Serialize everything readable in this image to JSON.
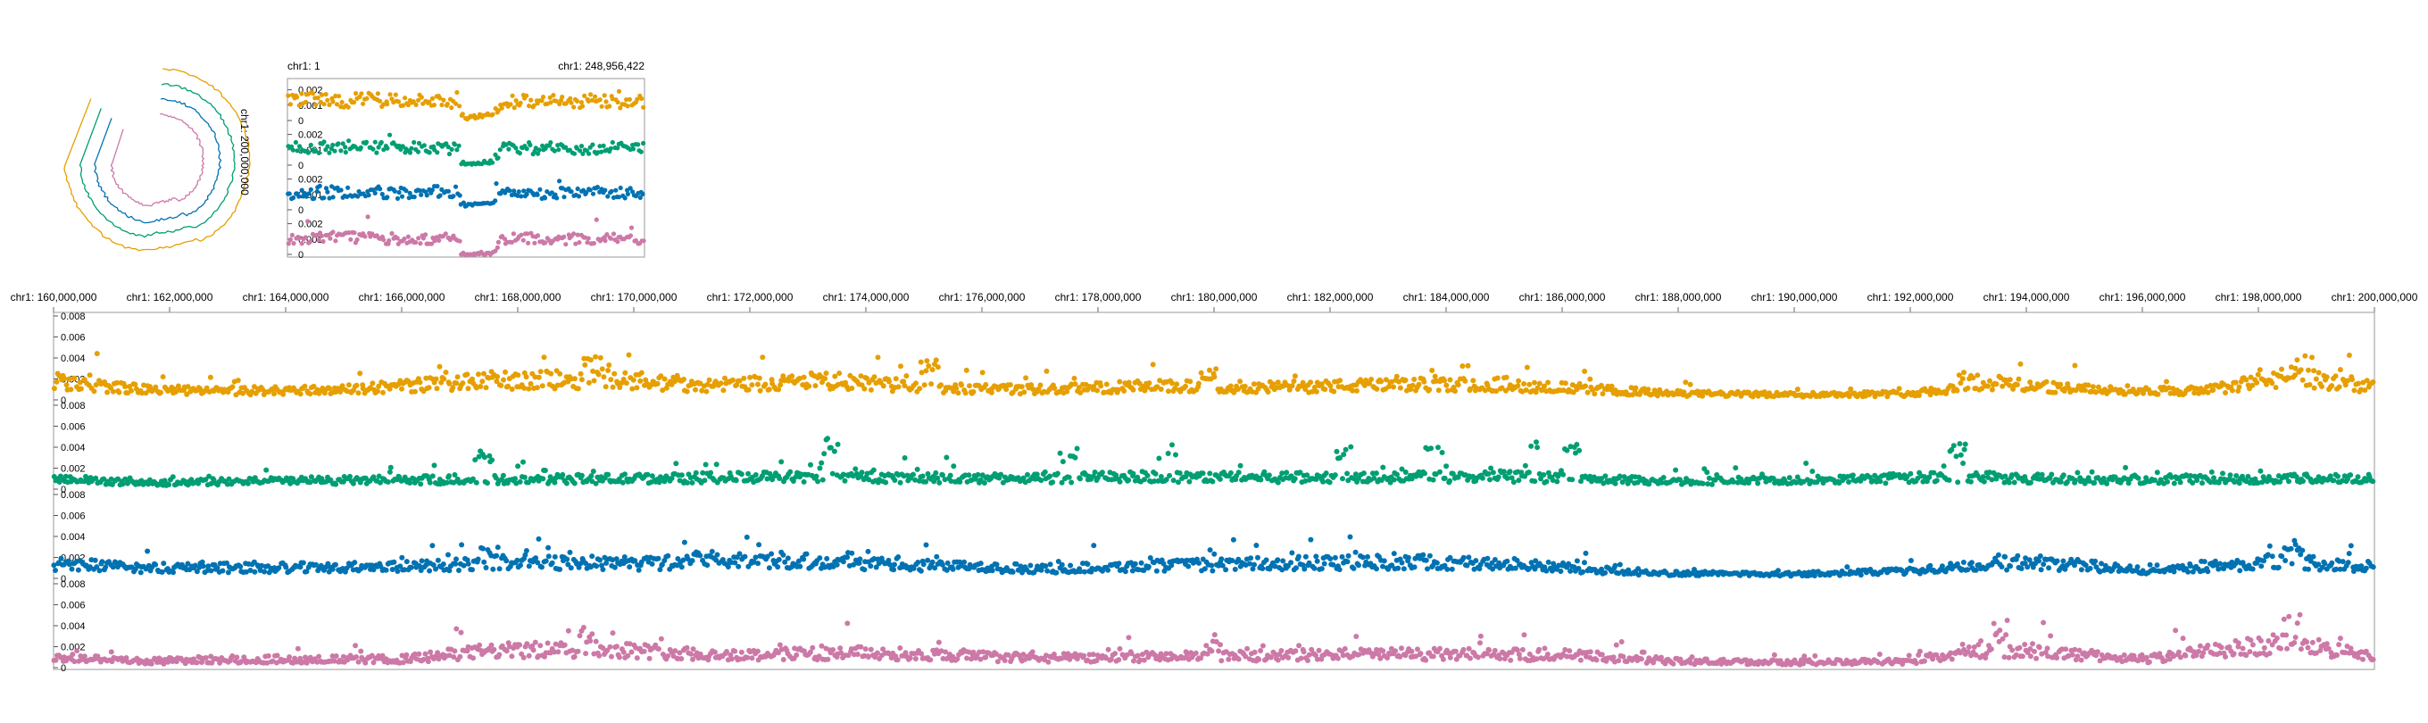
{
  "colors": {
    "track1": "#E69F00",
    "track2": "#009E73",
    "track3": "#0072B2",
    "track4": "#CC79A7"
  },
  "overview": {
    "start_label": "chr1: 1",
    "end_label": "chr1: 248,956,422",
    "circular_label": "chr1: 200,000,000",
    "y_ticks": [
      "0.002",
      "0.001",
      "0"
    ]
  },
  "detail": {
    "x_ticks": [
      "chr1: 160,000,000",
      "chr1: 162,000,000",
      "chr1: 164,000,000",
      "chr1: 166,000,000",
      "chr1: 168,000,000",
      "chr1: 170,000,000",
      "chr1: 172,000,000",
      "chr1: 174,000,000",
      "chr1: 176,000,000",
      "chr1: 178,000,000",
      "chr1: 180,000,000",
      "chr1: 182,000,000",
      "chr1: 184,000,000",
      "chr1: 186,000,000",
      "chr1: 188,000,000",
      "chr1: 190,000,000",
      "chr1: 192,000,000",
      "chr1: 194,000,000",
      "chr1: 196,000,000",
      "chr1: 198,000,000",
      "chr1: 200,000,000"
    ],
    "y_ticks": [
      "0.008",
      "0.006",
      "0.004",
      "0.002",
      "0"
    ]
  },
  "chart_data": [
    {
      "type": "scatter",
      "view": "overview",
      "x_range": [
        1,
        248956422
      ],
      "ylim": [
        0,
        0.0025
      ],
      "series": [
        {
          "color": "#E69F00",
          "profile_x": [
            1,
            20000000,
            40000000,
            60000000,
            80000000,
            100000000,
            120000000,
            121000000,
            125000000,
            143000000,
            150000000,
            170000000,
            190000000,
            210000000,
            230000000,
            248956422
          ],
          "profile_y": [
            0.0012,
            0.0014,
            0.0013,
            0.0014,
            0.0012,
            0.0013,
            0.0012,
            0.0004,
            0.0002,
            0.0004,
            0.0012,
            0.0013,
            0.0012,
            0.0013,
            0.0012,
            0.0012
          ]
        },
        {
          "color": "#009E73",
          "profile_x": [
            1,
            40000000,
            80000000,
            120000000,
            121000000,
            125000000,
            143000000,
            150000000,
            190000000,
            248956422
          ],
          "profile_y": [
            0.0011,
            0.0012,
            0.0011,
            0.0011,
            0.0002,
            0.0001,
            0.0002,
            0.0011,
            0.0011,
            0.0011
          ]
        },
        {
          "color": "#0072B2",
          "profile_x": [
            1,
            40000000,
            80000000,
            120000000,
            121000000,
            125000000,
            143000000,
            150000000,
            190000000,
            248956422
          ],
          "profile_y": [
            0.001,
            0.0012,
            0.0011,
            0.0012,
            0.0004,
            0.0003,
            0.0004,
            0.0011,
            0.0011,
            0.0011
          ]
        },
        {
          "color": "#CC79A7",
          "profile_x": [
            1,
            40000000,
            80000000,
            120000000,
            121000000,
            125000000,
            143000000,
            150000000,
            190000000,
            248956422
          ],
          "profile_y": [
            0.001,
            0.0011,
            0.001,
            0.001,
            0.0001,
            0.0,
            0.0001,
            0.001,
            0.001,
            0.001
          ]
        }
      ]
    },
    {
      "type": "scatter",
      "view": "detail",
      "x_range": [
        160000000,
        200000000
      ],
      "ylim": [
        0,
        0.008
      ],
      "series": [
        {
          "color": "#E69F00",
          "profile_x": [
            160000000,
            161500000,
            163000000,
            165000000,
            167500000,
            169500000,
            171000000,
            173500000,
            175000000,
            177000000,
            179000000,
            181000000,
            183000000,
            185000000,
            186500000,
            188000000,
            190000000,
            192000000,
            193500000,
            195000000,
            197000000,
            198500000,
            200000000
          ],
          "profile_y": [
            0.0018,
            0.001,
            0.0008,
            0.001,
            0.0018,
            0.002,
            0.0014,
            0.0018,
            0.0012,
            0.001,
            0.0013,
            0.0012,
            0.0014,
            0.0015,
            0.001,
            0.0006,
            0.0005,
            0.0006,
            0.0016,
            0.001,
            0.0008,
            0.0022,
            0.0012
          ],
          "peaks": [
            [
              169300000,
              0.0042
            ],
            [
              175100000,
              0.0038
            ],
            [
              179900000,
              0.003
            ],
            [
              198800000,
              0.0042
            ],
            [
              193000000,
              0.003
            ]
          ]
        },
        {
          "color": "#009E73",
          "profile_x": [
            160000000,
            161500000,
            164000000,
            167000000,
            170000000,
            173000000,
            176000000,
            179000000,
            182000000,
            185000000,
            187500000,
            190000000,
            193000000,
            195000000,
            198000000,
            200000000
          ],
          "profile_y": [
            0.001,
            0.0006,
            0.0008,
            0.0009,
            0.001,
            0.0012,
            0.001,
            0.0012,
            0.0011,
            0.0012,
            0.0008,
            0.0008,
            0.0012,
            0.0009,
            0.001,
            0.001
          ],
          "peaks": [
            [
              173400000,
              0.005
            ],
            [
              177500000,
              0.004
            ],
            [
              179200000,
              0.0045
            ],
            [
              182200000,
              0.0042
            ],
            [
              183800000,
              0.0048
            ],
            [
              185600000,
              0.0045
            ],
            [
              186200000,
              0.0048
            ],
            [
              192800000,
              0.0045
            ],
            [
              167400000,
              0.0038
            ]
          ]
        },
        {
          "color": "#0072B2",
          "profile_x": [
            160000000,
            161500000,
            163500000,
            166000000,
            168000000,
            170000000,
            172500000,
            175000000,
            177000000,
            179000000,
            181000000,
            183500000,
            185500000,
            187500000,
            190000000,
            192000000,
            194000000,
            196000000,
            198500000,
            200000000
          ],
          "profile_y": [
            0.0014,
            0.001,
            0.001,
            0.0011,
            0.0016,
            0.0014,
            0.0018,
            0.0012,
            0.0009,
            0.0012,
            0.0014,
            0.0016,
            0.0012,
            0.0005,
            0.0004,
            0.0007,
            0.0016,
            0.0008,
            0.0016,
            0.0011
          ],
          "peaks": [
            [
              167500000,
              0.003
            ],
            [
              198600000,
              0.003
            ],
            [
              171000000,
              0.0026
            ]
          ]
        },
        {
          "color": "#CC79A7",
          "profile_x": [
            160000000,
            161500000,
            163000000,
            166000000,
            167500000,
            169500000,
            171500000,
            174000000,
            177000000,
            180000000,
            183000000,
            186000000,
            188000000,
            190000000,
            192000000,
            193500000,
            196000000,
            198500000,
            200000000
          ],
          "profile_y": [
            0.001,
            0.0006,
            0.0008,
            0.0008,
            0.0016,
            0.0018,
            0.0012,
            0.0014,
            0.0009,
            0.0011,
            0.0013,
            0.0012,
            0.0006,
            0.0005,
            0.0006,
            0.0018,
            0.0008,
            0.0024,
            0.001
          ],
          "peaks": [
            [
              169200000,
              0.0044
            ],
            [
              193500000,
              0.0038
            ],
            [
              198600000,
              0.0052
            ],
            [
              180000000,
              0.0026
            ]
          ]
        }
      ]
    }
  ]
}
